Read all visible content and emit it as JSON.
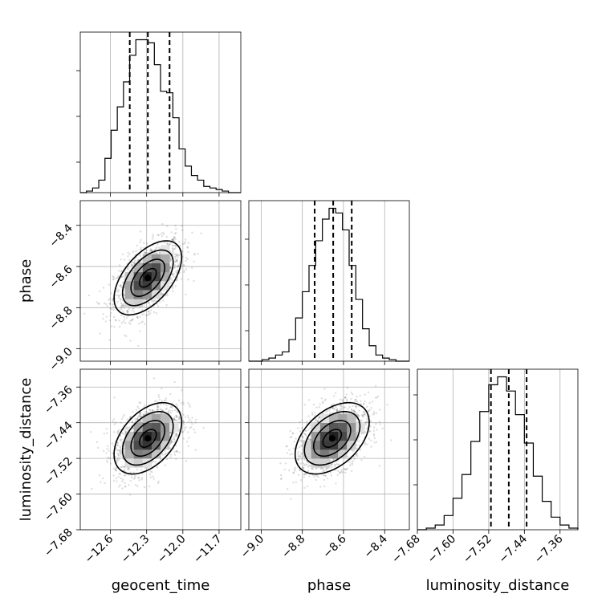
{
  "chart_data": {
    "type": "corner",
    "parameters": [
      "geocent_time",
      "phase",
      "luminosity_distance"
    ],
    "grid": true,
    "ranges": {
      "geocent_time": [
        -12.85,
        -11.52
      ],
      "phase": [
        -9.06,
        -8.28
      ],
      "luminosity_distance": [
        -7.68,
        -7.32
      ]
    },
    "ticks": {
      "geocent_time": [
        -12.6,
        -12.3,
        -12.0,
        -11.7
      ],
      "phase": [
        -9.0,
        -8.8,
        -8.6,
        -8.4
      ],
      "luminosity_distance": [
        -7.68,
        -7.6,
        -7.52,
        -7.44,
        -7.36
      ]
    },
    "tick_labels": {
      "geocent_time": [
        "−12.6",
        "−12.3",
        "−12.0",
        "−11.7"
      ],
      "phase": [
        "−9.0",
        "−8.8",
        "−8.6",
        "−8.4"
      ],
      "luminosity_distance": [
        "−7.68",
        "−7.60",
        "−7.52",
        "−7.44",
        "−7.36"
      ]
    },
    "histograms": {
      "geocent_time": {
        "range": [
          -12.85,
          -11.52
        ],
        "counts": [
          0,
          1,
          3,
          8,
          22,
          40,
          55,
          71,
          88,
          98,
          98,
          96,
          82,
          65,
          64,
          48,
          28,
          17,
          11,
          8,
          4,
          3,
          2,
          1,
          0,
          0
        ],
        "quantiles": [
          -12.44,
          -12.29,
          -12.11
        ]
      },
      "phase": {
        "range": [
          -9.06,
          -8.28
        ],
        "counts": [
          0,
          0,
          1,
          2,
          4,
          6,
          14,
          28,
          45,
          62,
          78,
          92,
          99,
          96,
          85,
          62,
          40,
          21,
          10,
          4,
          2,
          1,
          0,
          0
        ],
        "quantiles": [
          -8.74,
          -8.65,
          -8.56
        ]
      },
      "luminosity_distance": {
        "range": [
          -7.68,
          -7.32
        ],
        "counts": [
          0,
          1,
          3,
          9,
          20,
          35,
          56,
          75,
          92,
          97,
          88,
          73,
          55,
          34,
          18,
          8,
          3,
          1
        ],
        "quantiles": [
          -7.515,
          -7.475,
          -7.435
        ]
      }
    },
    "pairs": [
      {
        "x": "geocent_time",
        "y": "phase",
        "mean": [
          -12.29,
          -8.655
        ],
        "sd": [
          0.14,
          0.09
        ],
        "rho": 0.55
      },
      {
        "x": "geocent_time",
        "y": "luminosity_distance",
        "mean": [
          -12.29,
          -7.475
        ],
        "sd": [
          0.14,
          0.04
        ],
        "rho": 0.45
      },
      {
        "x": "phase",
        "y": "luminosity_distance",
        "mean": [
          -8.655,
          -7.475
        ],
        "sd": [
          0.09,
          0.04
        ],
        "rho": 0.45
      }
    ],
    "contour_levels_sigma": [
      0.5,
      1.0,
      1.5,
      2.0
    ]
  }
}
